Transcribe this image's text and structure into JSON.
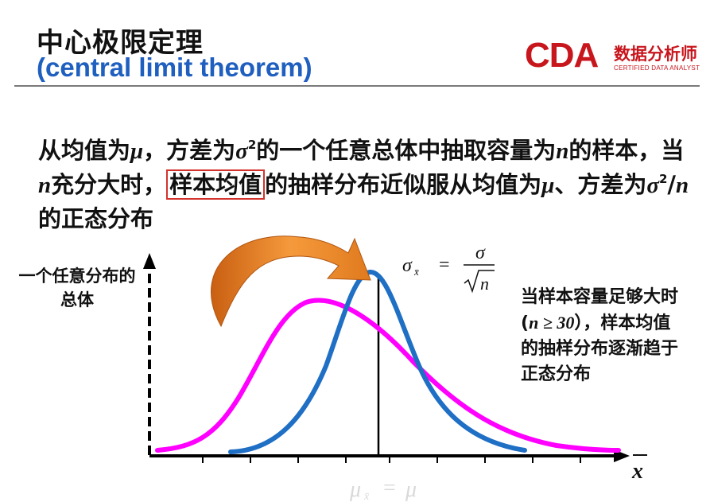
{
  "title": {
    "cn": "中心极限定理",
    "en": "(central limit theorem)"
  },
  "logo": {
    "letters": "CDA",
    "cn": "数据分析师",
    "en": "CERTIFIED DATA ANALYST",
    "color": "#c8161d"
  },
  "statement": {
    "seg1": "从均值为",
    "mu": "μ",
    "seg2": "，方差为",
    "sigma": "σ",
    "sq": "2",
    "seg3": "的一个任意总体中抽取容量为",
    "n": "n",
    "seg4": "的样本，当",
    "seg5": "充分大时，",
    "highlight": "样本均值",
    "seg6": "的抽样分布近似服从均值为",
    "seg7": "、方差为",
    "slash": "/",
    "seg8": "的正态分布"
  },
  "left_label": "一个任意分布的总体",
  "right_note": {
    "line1": "当样本容量足够大时(",
    "cond": "n ≥ 30",
    "line2": "），样本均值的抽样分布逐渐趋于正态分布"
  },
  "formula_sigma": {
    "lhs": "σ",
    "lhs_sub": "x̄",
    "eq": "=",
    "num": "σ",
    "den": "n"
  },
  "formula_mu": {
    "lhs": "μ",
    "lhs_sub": "x̄",
    "eq": "=",
    "rhs": "μ"
  },
  "axis_label": "x",
  "colors": {
    "population_curve": "#ff00ff",
    "sampling_curve": "#1f6fc5",
    "arrow": "#f08a2c",
    "highlight_box": "#d4332d",
    "title_en": "#1f5fbf"
  }
}
